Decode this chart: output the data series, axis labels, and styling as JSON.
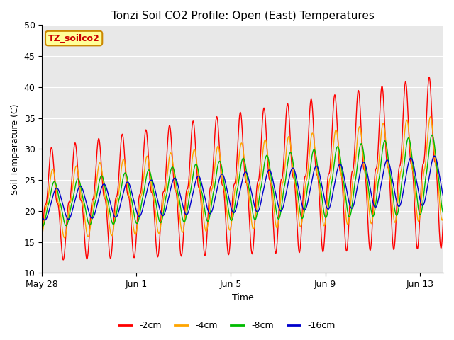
{
  "title": "Tonzi Soil CO2 Profile: Open (East) Temperatures",
  "xlabel": "Time",
  "ylabel": "Soil Temperature (C)",
  "ylim": [
    10,
    50
  ],
  "xtick_labels": [
    "May 28",
    "Jun 1",
    "Jun 5",
    "Jun 9",
    "Jun 13"
  ],
  "colors": {
    "-2cm": "#ff0000",
    "-4cm": "#ffa500",
    "-8cm": "#00bb00",
    "-16cm": "#0000cc"
  },
  "legend_label": "TZ_soilco2",
  "legend_bg": "#ffff99",
  "legend_border": "#cc8800",
  "plot_bg": "#e8e8e8",
  "fig_bg": "#ffffff",
  "total_days": 17,
  "resolution": 2000
}
